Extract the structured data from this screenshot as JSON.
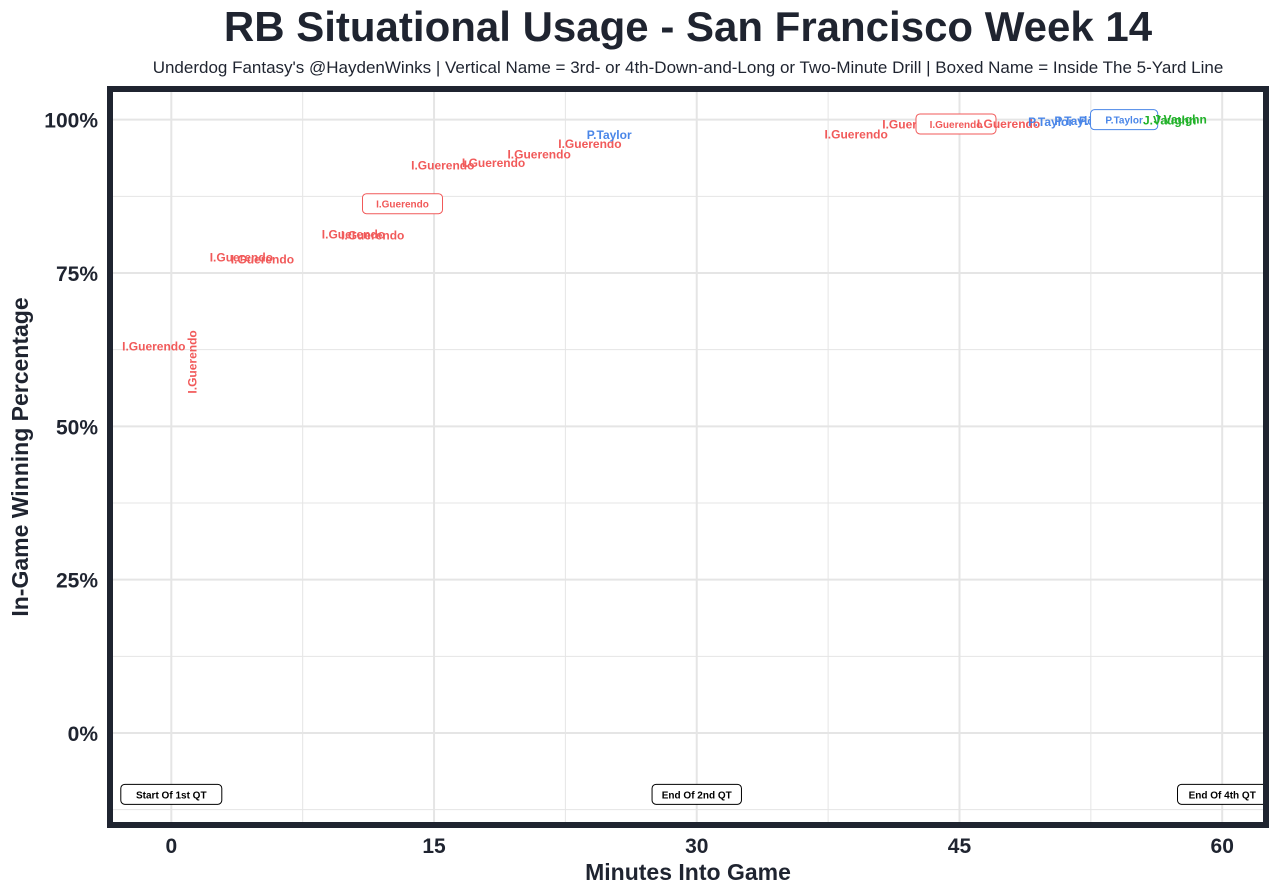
{
  "colors": {
    "I.Guerendo": "#f15a5a",
    "P.Taylor": "#4a86e8",
    "J.Vaughn": "#22b22a",
    "frame": "#1f2430",
    "grid": "#e5e5e5"
  },
  "chart_data": {
    "type": "scatter",
    "title": "RB Situational Usage - San Francisco Week 14",
    "subtitle": "Underdog Fantasy's @HaydenWinks | Vertical Name = 3rd- or 4th-Down-and-Long or Two-Minute Drill | Boxed Name = Inside The 5-Yard Line",
    "xlabel": "Minutes Into Game",
    "ylabel": "In-Game Winning Percentage",
    "xlim": [
      -3.5,
      62.5
    ],
    "ylim": [
      -15,
      105
    ],
    "xticks": [
      0,
      15,
      30,
      45,
      60
    ],
    "xtick_labels": [
      "0",
      "15",
      "30",
      "45",
      "60"
    ],
    "yticks": [
      0,
      25,
      50,
      75,
      100
    ],
    "ytick_labels": [
      "0%",
      "25%",
      "50%",
      "75%",
      "100%"
    ],
    "grid": true,
    "quarter_markers": [
      {
        "x": 0,
        "label": "Start Of 1st QT"
      },
      {
        "x": 30,
        "label": "End Of 2nd QT"
      },
      {
        "x": 60,
        "label": "End Of 4th QT"
      }
    ],
    "points": [
      {
        "x": -1.0,
        "y": 63.0,
        "player": "I.Guerendo",
        "style": "normal"
      },
      {
        "x": 1.2,
        "y": 60.5,
        "player": "I.Guerendo",
        "style": "vertical"
      },
      {
        "x": 4.0,
        "y": 77.5,
        "player": "I.Guerendo",
        "style": "normal"
      },
      {
        "x": 5.2,
        "y": 77.2,
        "player": "I.Guerendo",
        "style": "normal"
      },
      {
        "x": 10.4,
        "y": 81.3,
        "player": "I.Guerendo",
        "style": "normal"
      },
      {
        "x": 11.5,
        "y": 81.1,
        "player": "I.Guerendo",
        "style": "normal"
      },
      {
        "x": 13.2,
        "y": 86.3,
        "player": "I.Guerendo",
        "style": "boxed"
      },
      {
        "x": 15.5,
        "y": 92.5,
        "player": "I.Guerendo",
        "style": "normal"
      },
      {
        "x": 18.4,
        "y": 92.9,
        "player": "I.Guerendo",
        "style": "normal"
      },
      {
        "x": 21.0,
        "y": 94.3,
        "player": "I.Guerendo",
        "style": "normal"
      },
      {
        "x": 23.9,
        "y": 96.0,
        "player": "I.Guerendo",
        "style": "normal"
      },
      {
        "x": 25.0,
        "y": 97.5,
        "player": "P.Taylor",
        "style": "normal"
      },
      {
        "x": 39.1,
        "y": 97.6,
        "player": "I.Guerendo",
        "style": "normal"
      },
      {
        "x": 42.4,
        "y": 99.2,
        "player": "I.Guerendo",
        "style": "normal"
      },
      {
        "x": 44.8,
        "y": 99.3,
        "player": "I.Guerendo",
        "style": "boxed"
      },
      {
        "x": 47.8,
        "y": 99.3,
        "player": "I.Guerendo",
        "style": "normal"
      },
      {
        "x": 50.2,
        "y": 99.6,
        "player": "P.Taylor",
        "style": "normal"
      },
      {
        "x": 51.7,
        "y": 99.8,
        "player": "P.Taylor",
        "style": "normal"
      },
      {
        "x": 53.1,
        "y": 99.8,
        "player": "P.Taylor",
        "style": "normal"
      },
      {
        "x": 54.4,
        "y": 100.0,
        "player": "P.Taylor",
        "style": "boxed"
      },
      {
        "x": 57.0,
        "y": 99.9,
        "player": "J.Vaughn",
        "style": "normal"
      },
      {
        "x": 57.6,
        "y": 100.0,
        "player": "J.Vaughn",
        "style": "normal"
      }
    ]
  }
}
